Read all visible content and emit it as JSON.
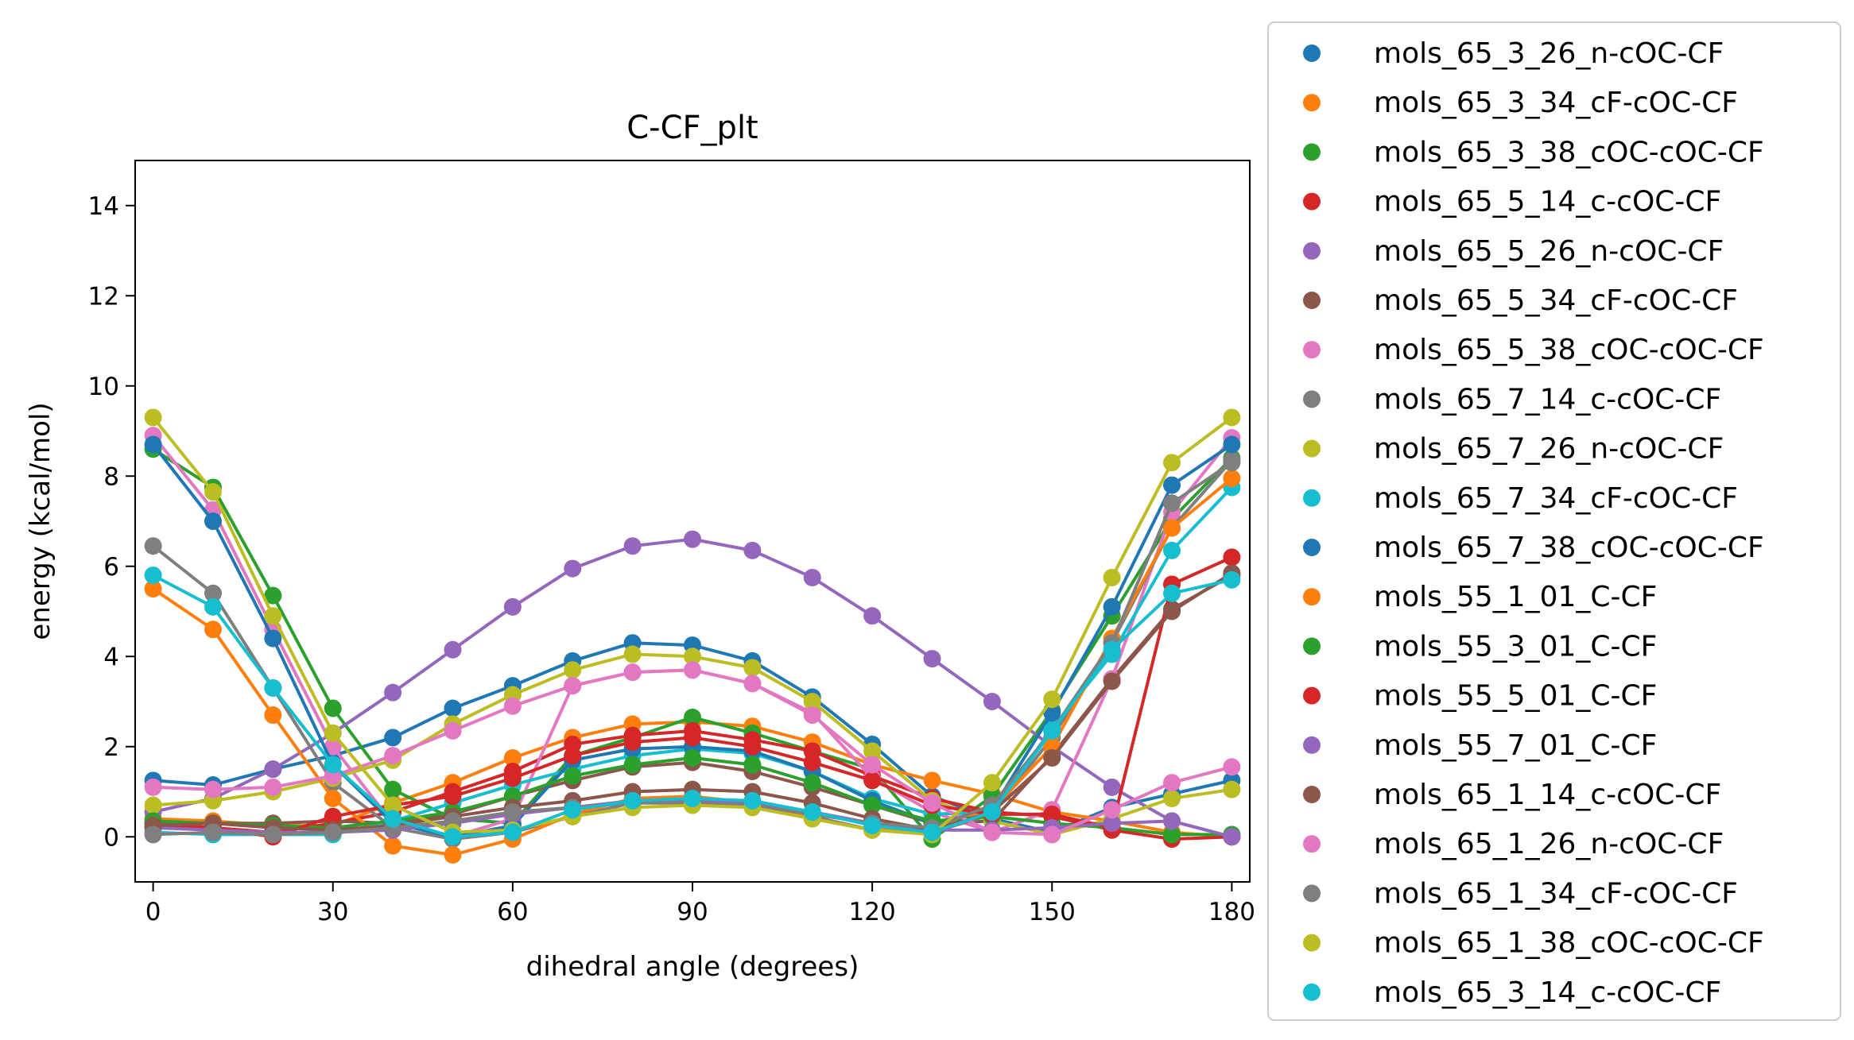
{
  "chart_data": {
    "type": "line",
    "title": "C-CF_plt",
    "xlabel": "dihedral angle (degrees)",
    "ylabel": "energy (kcal/mol)",
    "xlim": [
      -3,
      183
    ],
    "ylim": [
      -1,
      15
    ],
    "xticks": [
      0,
      30,
      60,
      90,
      120,
      150,
      180
    ],
    "yticks": [
      0,
      2,
      4,
      6,
      8,
      10,
      12,
      14
    ],
    "markers": true,
    "legend_position": "outside right",
    "series": [
      {
        "name": "mols_65_3_26_n-cOC-CF",
        "color": "#1f77b4",
        "x": [
          0,
          10,
          20,
          30,
          40,
          50,
          60,
          70,
          80,
          90,
          100,
          110,
          120,
          130,
          140,
          150,
          160,
          170,
          180
        ],
        "y": [
          1.25,
          1.15,
          1.5,
          1.8,
          2.2,
          2.85,
          3.35,
          3.9,
          4.3,
          4.25,
          3.9,
          3.1,
          2.05,
          0.9,
          0.4,
          0.1,
          0.65,
          0.95,
          1.25
        ]
      },
      {
        "name": "mols_65_3_34_cF-cOC-CF",
        "color": "#ff7f0e",
        "x": [
          0,
          10,
          20,
          30,
          40,
          50,
          60,
          70,
          80,
          90,
          100,
          110,
          120,
          130,
          140,
          150,
          160,
          170,
          180
        ],
        "y": [
          0.4,
          0.35,
          0.25,
          0.25,
          0.75,
          1.2,
          1.75,
          2.2,
          2.5,
          2.55,
          2.45,
          2.1,
          1.6,
          1.25,
          0.95,
          0.55,
          0.35,
          0.1,
          0.0
        ]
      },
      {
        "name": "mols_65_3_38_cOC-cOC-CF",
        "color": "#2ca02c",
        "x": [
          0,
          10,
          20,
          30,
          40,
          50,
          60,
          70,
          80,
          90,
          100,
          110,
          120,
          130,
          140,
          150,
          160,
          170,
          180
        ],
        "y": [
          8.6,
          7.75,
          5.35,
          2.85,
          1.05,
          0.4,
          0.3,
          1.8,
          2.2,
          2.65,
          2.3,
          1.9,
          1.5,
          -0.05,
          0.9,
          2.8,
          4.9,
          7.05,
          8.4
        ]
      },
      {
        "name": "mols_65_5_14_c-cOC-CF",
        "color": "#d62728",
        "x": [
          0,
          10,
          20,
          30,
          40,
          50,
          60,
          70,
          80,
          90,
          100,
          110,
          120,
          130,
          140,
          150,
          160,
          170,
          180
        ],
        "y": [
          0.3,
          0.2,
          0.1,
          0.3,
          0.55,
          1.0,
          1.45,
          2.05,
          2.25,
          2.35,
          2.15,
          1.9,
          1.35,
          0.85,
          0.55,
          0.45,
          0.15,
          -0.05,
          0.0
        ]
      },
      {
        "name": "mols_65_5_26_n-cOC-CF",
        "color": "#9467bd",
        "x": [
          0,
          10,
          20,
          30,
          40,
          50,
          60,
          70,
          80,
          90,
          100,
          110,
          120,
          130,
          140,
          150,
          160,
          170,
          180
        ],
        "y": [
          0.55,
          0.85,
          1.5,
          2.3,
          3.2,
          4.15,
          5.1,
          5.95,
          6.45,
          6.6,
          6.35,
          5.75,
          4.9,
          3.95,
          3.0,
          2.0,
          1.1,
          0.35,
          0.0
        ]
      },
      {
        "name": "mols_65_5_34_cF-cOC-CF",
        "color": "#8c564b",
        "x": [
          0,
          10,
          20,
          30,
          40,
          50,
          60,
          70,
          80,
          90,
          100,
          110,
          120,
          130,
          140,
          150,
          160,
          170,
          180
        ],
        "y": [
          0.3,
          0.3,
          0.3,
          0.35,
          0.3,
          0.5,
          0.9,
          1.25,
          1.55,
          1.65,
          1.45,
          1.1,
          0.7,
          0.3,
          0.35,
          1.8,
          3.5,
          5.05,
          5.8
        ]
      },
      {
        "name": "mols_65_5_38_cOC-cOC-CF",
        "color": "#e377c2",
        "x": [
          0,
          10,
          20,
          30,
          40,
          50,
          60,
          70,
          80,
          90,
          100,
          110,
          120,
          130,
          140,
          150,
          160,
          170,
          180
        ],
        "y": [
          8.9,
          7.25,
          4.6,
          2.0,
          0.3,
          0.0,
          0.4,
          3.35,
          3.65,
          3.7,
          3.4,
          2.75,
          1.3,
          0.55,
          0.1,
          0.6,
          3.5,
          7.2,
          8.85
        ]
      },
      {
        "name": "mols_65_7_14_c-cOC-CF",
        "color": "#7f7f7f",
        "x": [
          0,
          10,
          20,
          30,
          40,
          50,
          60,
          70,
          80,
          90,
          100,
          110,
          120,
          130,
          140,
          150,
          160,
          170,
          180
        ],
        "y": [
          6.45,
          5.4,
          3.3,
          1.2,
          0.2,
          -0.05,
          0.1,
          0.45,
          0.75,
          0.85,
          0.75,
          0.45,
          0.15,
          0.1,
          0.5,
          2.2,
          4.3,
          6.85,
          8.35
        ]
      },
      {
        "name": "mols_65_7_26_n-cOC-CF",
        "color": "#bcbd22",
        "x": [
          0,
          10,
          20,
          30,
          40,
          50,
          60,
          70,
          80,
          90,
          100,
          110,
          120,
          130,
          140,
          150,
          160,
          170,
          180
        ],
        "y": [
          0.7,
          0.8,
          1.0,
          1.3,
          1.7,
          2.5,
          3.15,
          3.7,
          4.05,
          4.0,
          3.75,
          3.0,
          1.9,
          0.8,
          0.35,
          0.05,
          0.4,
          0.85,
          1.05
        ]
      },
      {
        "name": "mols_65_7_34_cF-cOC-CF",
        "color": "#17becf",
        "x": [
          0,
          10,
          20,
          30,
          40,
          50,
          60,
          70,
          80,
          90,
          100,
          110,
          120,
          130,
          140,
          150,
          160,
          170,
          180
        ],
        "y": [
          0.1,
          0.05,
          0.05,
          0.05,
          0.35,
          0.75,
          1.15,
          1.5,
          1.8,
          1.95,
          1.85,
          1.45,
          0.85,
          0.5,
          0.55,
          2.4,
          4.05,
          6.35,
          7.75
        ]
      },
      {
        "name": "mols_65_7_38_cOC-cOC-CF",
        "color": "#1f77b4",
        "x": [
          0,
          10,
          20,
          30,
          40,
          50,
          60,
          70,
          80,
          90,
          100,
          110,
          120,
          130,
          140,
          150,
          160,
          170,
          180
        ],
        "y": [
          8.7,
          7.0,
          4.4,
          1.6,
          0.3,
          0.0,
          0.25,
          1.7,
          1.95,
          2.0,
          1.9,
          1.45,
          0.8,
          0.3,
          0.6,
          2.75,
          5.1,
          7.8,
          8.7
        ]
      },
      {
        "name": "mols_55_1_01_C-CF",
        "color": "#ff7f0e",
        "x": [
          0,
          10,
          20,
          30,
          40,
          50,
          60,
          70,
          80,
          90,
          100,
          110,
          120,
          130,
          140,
          150,
          160,
          170,
          180
        ],
        "y": [
          5.5,
          4.6,
          2.7,
          0.85,
          -0.2,
          -0.4,
          -0.05,
          0.5,
          0.85,
          0.9,
          0.75,
          0.4,
          0.15,
          0.2,
          0.6,
          2.0,
          4.4,
          6.85,
          7.95
        ]
      },
      {
        "name": "mols_55_3_01_C-CF",
        "color": "#2ca02c",
        "x": [
          0,
          10,
          20,
          30,
          40,
          50,
          60,
          70,
          80,
          90,
          100,
          110,
          120,
          130,
          140,
          150,
          160,
          170,
          180
        ],
        "y": [
          0.35,
          0.3,
          0.25,
          0.2,
          0.35,
          0.55,
          0.9,
          1.35,
          1.6,
          1.75,
          1.6,
          1.2,
          0.7,
          0.35,
          0.45,
          0.3,
          0.2,
          0.05,
          0.05
        ]
      },
      {
        "name": "mols_55_5_01_C-CF",
        "color": "#d62728",
        "x": [
          0,
          10,
          20,
          30,
          40,
          50,
          60,
          70,
          80,
          90,
          100,
          110,
          120,
          130,
          140,
          150,
          160,
          170,
          180
        ],
        "y": [
          0.2,
          0.2,
          0.0,
          0.45,
          0.7,
          0.9,
          1.3,
          1.8,
          2.1,
          2.2,
          2.0,
          1.65,
          1.25,
          0.7,
          0.5,
          0.5,
          0.2,
          5.6,
          6.2
        ]
      },
      {
        "name": "mols_55_7_01_C-CF",
        "color": "#9467bd",
        "x": [
          0,
          10,
          20,
          30,
          40,
          50,
          60,
          70,
          80,
          90,
          100,
          110,
          120,
          130,
          140,
          150,
          160,
          170,
          180
        ],
        "y": [
          0.2,
          0.15,
          0.1,
          0.1,
          0.15,
          0.3,
          0.5,
          0.65,
          0.8,
          0.8,
          0.75,
          0.55,
          0.3,
          0.15,
          0.15,
          0.2,
          0.3,
          0.35,
          0.0
        ]
      },
      {
        "name": "mols_65_1_14_c-cOC-CF",
        "color": "#8c564b",
        "x": [
          0,
          10,
          20,
          30,
          40,
          50,
          60,
          70,
          80,
          90,
          100,
          110,
          120,
          130,
          140,
          150,
          160,
          170,
          180
        ],
        "y": [
          0.25,
          0.3,
          0.2,
          0.15,
          0.25,
          0.45,
          0.65,
          0.8,
          1.0,
          1.05,
          1.0,
          0.75,
          0.4,
          0.15,
          0.55,
          1.75,
          3.45,
          5.0,
          5.85
        ]
      },
      {
        "name": "mols_65_1_26_n-cOC-CF",
        "color": "#e377c2",
        "x": [
          0,
          10,
          20,
          30,
          40,
          50,
          60,
          70,
          80,
          90,
          100,
          110,
          120,
          130,
          140,
          150,
          160,
          170,
          180
        ],
        "y": [
          1.1,
          1.05,
          1.1,
          1.35,
          1.8,
          2.35,
          2.9,
          3.35,
          3.65,
          3.7,
          3.4,
          2.7,
          1.6,
          0.75,
          0.1,
          0.05,
          0.6,
          1.2,
          1.55
        ]
      },
      {
        "name": "mols_65_1_34_cF-cOC-CF",
        "color": "#7f7f7f",
        "x": [
          0,
          10,
          20,
          30,
          40,
          50,
          60,
          70,
          80,
          90,
          100,
          110,
          120,
          130,
          140,
          150,
          160,
          170,
          180
        ],
        "y": [
          0.05,
          0.1,
          0.05,
          0.1,
          0.2,
          0.35,
          0.55,
          0.65,
          0.75,
          0.75,
          0.7,
          0.5,
          0.3,
          0.2,
          0.7,
          2.35,
          4.3,
          7.4,
          8.3
        ]
      },
      {
        "name": "mols_65_1_38_cOC-cOC-CF",
        "color": "#bcbd22",
        "x": [
          0,
          10,
          20,
          30,
          40,
          50,
          60,
          70,
          80,
          90,
          100,
          110,
          120,
          130,
          140,
          150,
          160,
          170,
          180
        ],
        "y": [
          9.3,
          7.65,
          4.9,
          2.3,
          0.7,
          0.1,
          0.15,
          0.45,
          0.65,
          0.7,
          0.65,
          0.4,
          0.15,
          0.05,
          1.2,
          3.05,
          5.75,
          8.3,
          9.3
        ]
      },
      {
        "name": "mols_65_3_14_c-cOC-CF",
        "color": "#17becf",
        "x": [
          0,
          10,
          20,
          30,
          40,
          50,
          60,
          70,
          80,
          90,
          100,
          110,
          120,
          130,
          140,
          150,
          160,
          170,
          180
        ],
        "y": [
          5.8,
          5.1,
          3.3,
          1.6,
          0.4,
          0.0,
          0.1,
          0.6,
          0.8,
          0.85,
          0.8,
          0.55,
          0.25,
          0.1,
          0.55,
          2.35,
          4.15,
          5.4,
          5.7
        ]
      }
    ]
  }
}
